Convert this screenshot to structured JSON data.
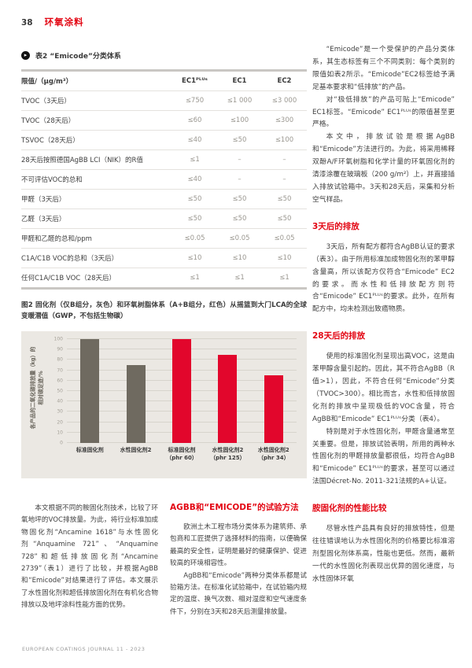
{
  "page": {
    "page_number": "38",
    "section_title": "环氧涂料",
    "footer": "EUROPEAN COATINGS JOURNAL 11 - 2023"
  },
  "colors": {
    "accent_red": "#e30613",
    "bar_red": "#e2062c",
    "bar_gray": "#6f6a60",
    "chart_bg": "#ebe8e3",
    "table_value_gray": "#9b9891"
  },
  "table": {
    "marker_icon": "table-marker-icon",
    "title": "表2 “Emicode”分类体系",
    "columns": [
      "限值/（μg/m³）",
      "EC1ᴾᴸᵁˢ",
      "EC1",
      "EC2"
    ],
    "rows": [
      {
        "label": "TVOC（3天后）",
        "values": [
          "≤750",
          "≤1 000",
          "≤3 000"
        ]
      },
      {
        "label": "TVOC（28天后）",
        "values": [
          "≤60",
          "≤100",
          "≤300"
        ]
      },
      {
        "label": "TSVOC（28天后）",
        "values": [
          "≤40",
          "≤50",
          "≤100"
        ]
      },
      {
        "label": "28天后按照德国AgBB LCI（NIK）的R值",
        "values": [
          "≤1",
          "–",
          "–"
        ]
      },
      {
        "label": "不可评估VOC的总和",
        "values": [
          "≤40",
          "–",
          "–"
        ]
      },
      {
        "label": "甲醛（3天后）",
        "values": [
          "≤50",
          "≤50",
          "≤50"
        ]
      },
      {
        "label": "乙醛（3天后）",
        "values": [
          "≤50",
          "≤50",
          "≤50"
        ]
      },
      {
        "label": "甲醛和乙醛的总和/ppm",
        "values": [
          "≤0.05",
          "≤0.05",
          "≤0.05"
        ]
      },
      {
        "label": "C1A/C1B VOC的总和（3天后）",
        "values": [
          "≤10",
          "≤10",
          "≤10"
        ]
      },
      {
        "label": "任何C1A/C1B VOC（28天后）",
        "values": [
          "≤1",
          "≤1",
          "≤1"
        ]
      }
    ]
  },
  "figure": {
    "caption": "图2 固化剂（仅B组分，灰色）和环氧树脂体系（A+B组分，红色）从摇篮到大门LCA的全球变暖潜值（GWP，不包括生物碳）"
  },
  "chart_data": {
    "type": "bar",
    "categories": [
      "标准固化剂",
      "水性固化剂2",
      "标准固化剂（phr 60）",
      "水性固化剂2（phr 125）",
      "水性固化剂2（phr 34）"
    ],
    "labels_main": [
      "标准固化剂",
      "水性固化剂2",
      "标准固化剂",
      "水性固化剂2",
      "水性固化剂2"
    ],
    "labels_sub": [
      "",
      "",
      "（phr 60）",
      "（phr 125）",
      "（phr 34）"
    ],
    "values": [
      100,
      75,
      100,
      85,
      65
    ],
    "series_colors": [
      "#6f6a60",
      "#6f6a60",
      "#e2062c",
      "#e2062c",
      "#e2062c"
    ],
    "title": "",
    "xlabel": "",
    "ylabel": "各产品的二氧化碳排放量（kg）的相对碳足迹/%",
    "ylabel_lines": [
      "各产品的二氧化碳排放量（kg）的",
      "相对碳足迹/%"
    ],
    "ylim": [
      0,
      100
    ],
    "ytick_step": 10,
    "grid": true,
    "legend": "none"
  },
  "intro": {
    "text": "本文根据不同的胺固化剂技术，比较了环氧地坪的VOC排放量。为此，将行业标准加成物固化剂“Ancamine 1618”与水性固化剂“Anquamine 721”、“Anquamine 728”和超低排放固化剂“Ancamine 2739”（表1）进行了比较，并根据AgBB和“Emicode”对结果进行了评估。本文展示了水性固化剂和超低排放固化剂在有机化合物排放以及地坪涂料性能方面的优势。"
  },
  "method_section": {
    "heading": "AGBB和“EMICODE”的试验方法",
    "paragraphs": [
      "欧洲土木工程市场分类体系为建筑师、承包商和工匠提供了选择材料的指南，以便确保最高的安全性，证明是最好的健康保护、促进较高的环境相容性。",
      "AgBB和“Emicode”两种分类体系都是试验箱方法。在标准化试验箱中，在试验箱内规定的温度、换气次数、相对湿度和空气速度条件下，分别在3天和28天后测量排放量。"
    ]
  },
  "right_column": {
    "blocks": [
      {
        "type": "p",
        "text": "“Emicode”是一个受保护的产品分类体系，其生态标签有三个不同类别：每个类别的限值如表2所示。“Emicode”EC2标签给予满足基本要求和“低排放”的产品。"
      },
      {
        "type": "p",
        "text": "对“极低排放”的产品可贴上“Emicode” EC1标签。“Emicode” EC1ᴾᴸᵁˢ的限值甚至更严格。"
      },
      {
        "type": "p",
        "text": "本文中，排放试验是根据AgBB和“Emicode”方法进行的。为此，将采用稀释双酚A/F环氧树脂和化学计量的环氧固化剂的清漆涂覆在玻璃板（200 g/m²）上，并直接插入排放试验箱中。3天和28天后，采集和分析空气样品。"
      },
      {
        "type": "h",
        "text": "3天后的排放"
      },
      {
        "type": "p",
        "text": "3天后，所有配方都符合AgBB认证的要求（表3）。由于所用标准加成物固化剂的苯甲醇含量高，所以该配方仅符合“Emicode” EC2的要求。而水性和低排放配方则符合“Emicode” EC1ᴾᴸᵁˢ的要求。此外，在所有配方中，均未检测出致癌物质。"
      },
      {
        "type": "h",
        "text": "28天后的排放"
      },
      {
        "type": "p",
        "text": "使用的标准固化剂呈现出高VOC，这是由苯甲醇含量引起的。因此，其不符合AgBB（R值>1），因此，不符合任何“Emicode”分类（TVOC>300）。相比而言，水性和低排放固化剂的排放中呈现极低的VOC含量，符合AgBB和“Emicode” EC1ᴾᴸᵁˢ分类（表4）。"
      },
      {
        "type": "p",
        "text": "特别是对于水性固化剂，甲醛含量通常至关重要。但是，排放试验表明，所用的两种水性固化剂的甲醛排放量都很低，均符合AgBB和“Emicode” EC1ᴾᴸᵁˢ的要求，甚至可以通过法国Décret-No. 2011-321法规的A+认证。"
      },
      {
        "type": "h",
        "text": "胺固化剂的性能比较"
      },
      {
        "type": "p",
        "text": "尽管水性产品具有良好的排放特性，但是往往错误地认为水性固化剂的价格要比标准溶剂型固化剂体系高，性能也更低。然而，最新一代的水性固化剂表现出优异的固化速度，与水性固体环氧"
      }
    ]
  }
}
